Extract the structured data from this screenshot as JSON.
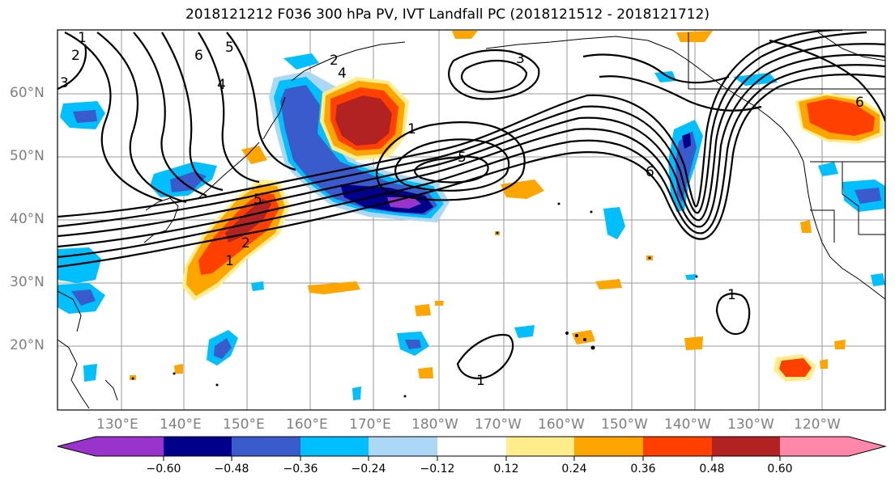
{
  "title": "2018121212 F036 300 hPa PV, IVT Landfall PC (2018121512 - 2018121712)",
  "x_ticks": [
    "130°E",
    "140°E",
    "150°E",
    "160°E",
    "170°E",
    "180°W",
    "170°W",
    "160°W",
    "150°W",
    "140°W",
    "130°W",
    "120°W"
  ],
  "y_ticks": [
    "60°N",
    "50°N",
    "40°N",
    "30°N",
    "20°N"
  ],
  "colorbar": {
    "labels": [
      "−0.60",
      "−0.48",
      "−0.36",
      "−0.24",
      "−0.12",
      "0.12",
      "0.24",
      "0.36",
      "0.48",
      "0.60"
    ],
    "colors": [
      "#9933cc",
      "#00008b",
      "#3a5bcc",
      "#00bfff",
      "#add8f5",
      "#ffffff",
      "#ffec8a",
      "#ffa500",
      "#ff4000",
      "#b22222",
      "#ff88aa"
    ]
  },
  "contour_labels": [
    "1",
    "2",
    "3",
    "4",
    "5",
    "6",
    "1",
    "2",
    "5",
    "1",
    "5",
    "6",
    "1",
    "1",
    "2",
    "3",
    "4",
    "6"
  ]
}
